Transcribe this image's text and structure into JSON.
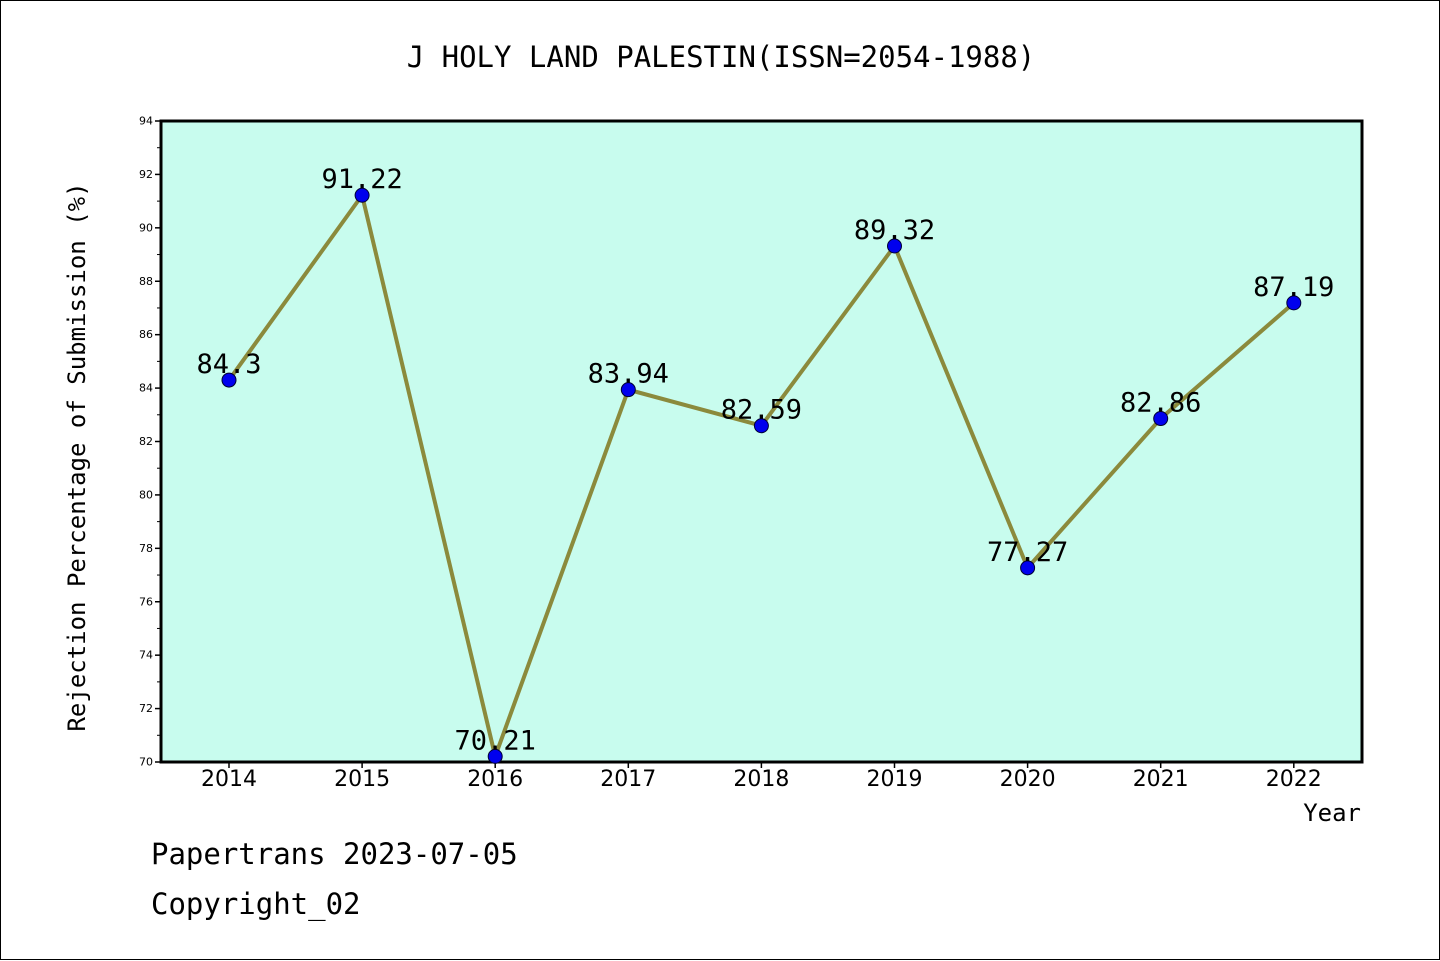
{
  "chart_data": {
    "type": "line",
    "title": "J HOLY LAND PALESTIN(ISSN=2054-1988)",
    "xlabel": "Year",
    "ylabel": "Rejection Percentage of Submission (%)",
    "categories": [
      "2014",
      "2015",
      "2016",
      "2017",
      "2018",
      "2019",
      "2020",
      "2021",
      "2022"
    ],
    "values": [
      84.3,
      91.22,
      70.21,
      83.94,
      82.59,
      89.32,
      77.27,
      82.86,
      87.19
    ],
    "data_labels": [
      "84.3",
      "91.22",
      "70.21",
      "83.94",
      "82.59",
      "89.32",
      "77.27",
      "82.86",
      "87.19"
    ],
    "ylim": [
      70,
      94
    ],
    "yticks": [
      "70",
      "72",
      "74",
      "76",
      "78",
      "80",
      "82",
      "84",
      "86",
      "88",
      "90",
      "92",
      "94"
    ],
    "grid": false,
    "line_color": "#8b8a3c",
    "marker_color": "#0000ee",
    "plot_background": "#c8fcee"
  },
  "footer": {
    "credit": "Papertrans 2023-07-05",
    "copyright": "Copyright_02"
  }
}
